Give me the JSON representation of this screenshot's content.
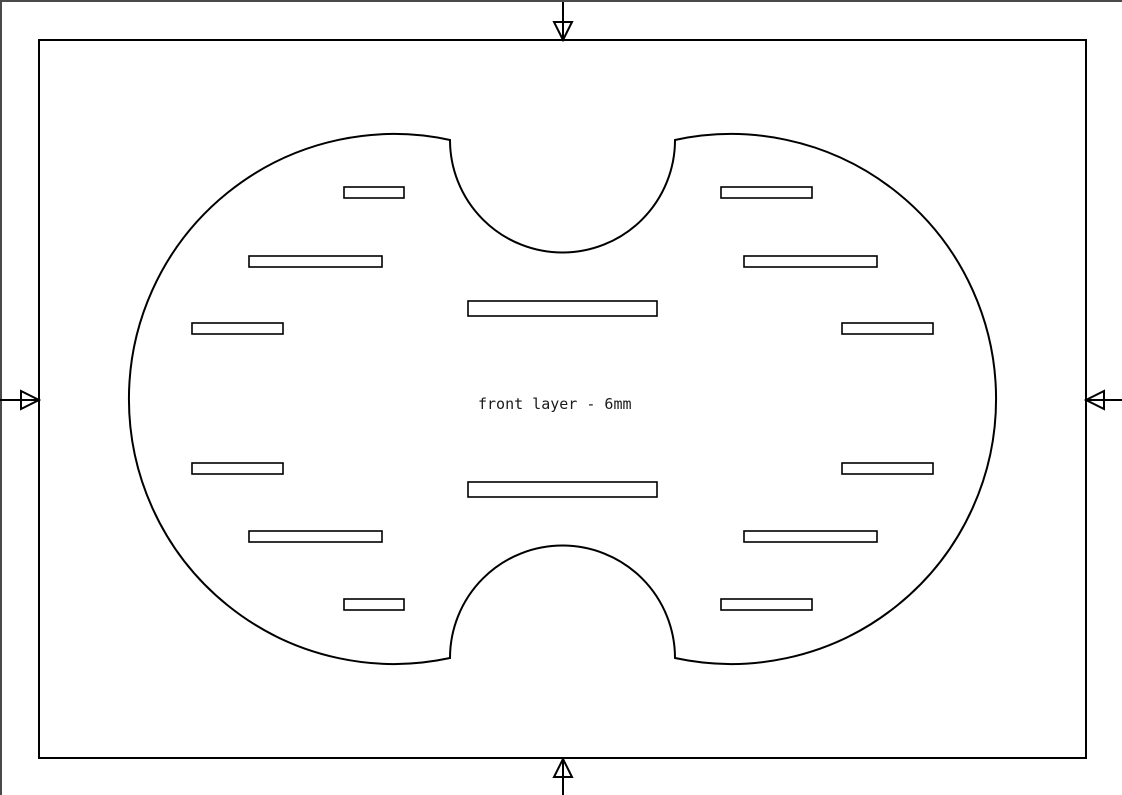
{
  "drawing": {
    "label": "front layer - 6mm"
  }
}
